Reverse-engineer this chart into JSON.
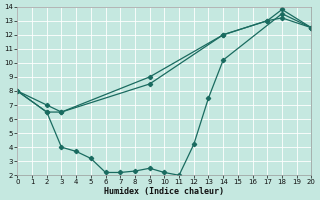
{
  "xlabel": "Humidex (Indice chaleur)",
  "xlim": [
    0,
    20
  ],
  "ylim": [
    2,
    14
  ],
  "xticks": [
    0,
    1,
    2,
    3,
    4,
    5,
    6,
    7,
    8,
    9,
    10,
    11,
    12,
    13,
    14,
    15,
    16,
    17,
    18,
    19,
    20
  ],
  "yticks": [
    2,
    3,
    4,
    5,
    6,
    7,
    8,
    9,
    10,
    11,
    12,
    13,
    14
  ],
  "bg_color": "#c5e8e0",
  "line_color": "#1a6b60",
  "line1_x": [
    0,
    2,
    3,
    9,
    14,
    17,
    18,
    20
  ],
  "line1_y": [
    8,
    7,
    6.5,
    8.5,
    12,
    13,
    13.8,
    12.5
  ],
  "line2_x": [
    0,
    2,
    3,
    9,
    14,
    17,
    18,
    20
  ],
  "line2_y": [
    8,
    6.5,
    6.5,
    9,
    12,
    13,
    13.2,
    12.5
  ],
  "line3_x": [
    0,
    2,
    3,
    4,
    5,
    6,
    7,
    8,
    9,
    10,
    11,
    12,
    13,
    14,
    18,
    20
  ],
  "line3_y": [
    8,
    6.5,
    4.0,
    3.7,
    3.2,
    2.2,
    2.2,
    2.3,
    2.5,
    2.2,
    2.0,
    4.2,
    7.5,
    10.2,
    13.5,
    12.5
  ]
}
